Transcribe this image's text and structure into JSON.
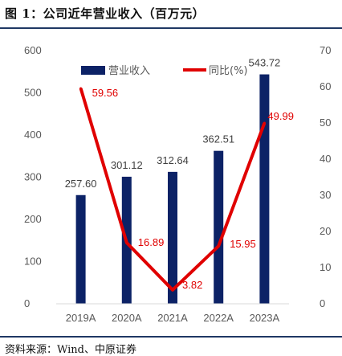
{
  "header": {
    "title": "图 1：公司近年营业收入（百万元）"
  },
  "footer": {
    "source": "资料来源：Wind、中原证券"
  },
  "colors": {
    "bar": "#0c2266",
    "line": "#e00000",
    "rule": "#1f3864"
  },
  "chart_data": {
    "type": "bar",
    "categories": [
      "2019A",
      "2020A",
      "2021A",
      "2022A",
      "2023A"
    ],
    "series": [
      {
        "name": "营业收入",
        "type": "bar",
        "axis": "left",
        "values": [
          257.6,
          301.12,
          312.64,
          362.51,
          543.72
        ],
        "labels": [
          "257.60",
          "301.12",
          "312.64",
          "362.51",
          "543.72"
        ]
      },
      {
        "name": "同比(%)",
        "type": "line",
        "axis": "right",
        "values": [
          59.56,
          16.89,
          3.82,
          15.95,
          49.99
        ],
        "labels": [
          "59.56",
          "16.89",
          "3.82",
          "15.95",
          "49.99"
        ]
      }
    ],
    "y_left": {
      "min": 0,
      "max": 600,
      "ticks": [
        "0",
        "100",
        "200",
        "300",
        "400",
        "500",
        "600"
      ]
    },
    "y_right": {
      "min": 0,
      "max": 70,
      "ticks": [
        "0",
        "10",
        "20",
        "30",
        "40",
        "50",
        "60",
        "70"
      ]
    },
    "legend": {
      "position": "top-left"
    },
    "grid": false
  }
}
